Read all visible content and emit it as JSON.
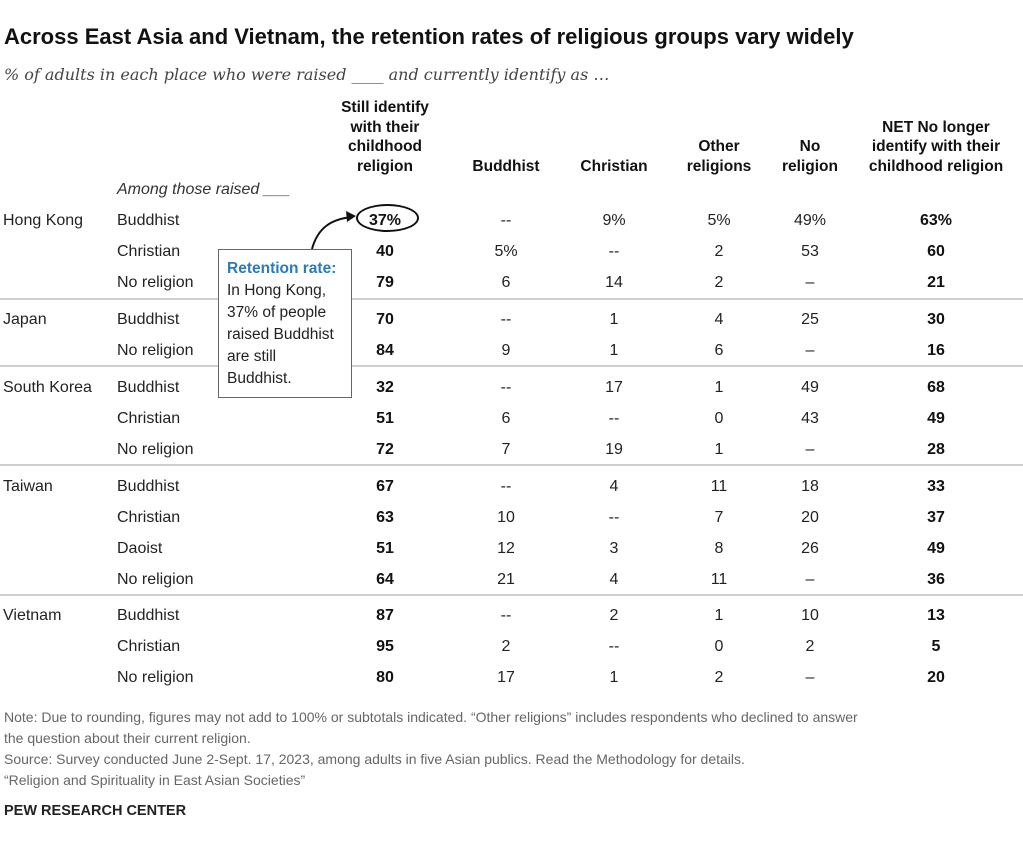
{
  "title": "Across East Asia and Vietnam, the retention rates of religious groups vary widely",
  "subtitle": "% of adults in each place who were raised ____ and currently identify as …",
  "among_label": "Among those raised ___",
  "columns": [
    {
      "key": "still",
      "lines": [
        "Still identify",
        "with their",
        "childhood",
        "religion"
      ]
    },
    {
      "key": "buddhist",
      "lines": [
        "Buddhist"
      ]
    },
    {
      "key": "christian",
      "lines": [
        "Christian"
      ]
    },
    {
      "key": "other",
      "lines": [
        "Other",
        "religions"
      ]
    },
    {
      "key": "none",
      "lines": [
        "No",
        "religion"
      ]
    },
    {
      "key": "net",
      "lines": [
        "NET No longer",
        "identify with their",
        "childhood religion"
      ]
    }
  ],
  "callout": {
    "highlight": "Retention rate:",
    "text": " In Hong Kong, 37% of people raised Buddhist are still Buddhist."
  },
  "chart_data": {
    "type": "table",
    "columns": [
      "Still identify with their childhood religion",
      "Buddhist",
      "Christian",
      "Other religions",
      "No religion",
      "NET No longer identify with their childhood religion"
    ],
    "groups": [
      {
        "place": "Hong Kong",
        "rows": [
          {
            "raised": "Buddhist",
            "values": [
              "37%",
              "--",
              "9%",
              "5%",
              "49%",
              "63%"
            ]
          },
          {
            "raised": "Christian",
            "values": [
              "40",
              "5%",
              "--",
              "2",
              "53",
              "60"
            ]
          },
          {
            "raised": "No religion",
            "values": [
              "79",
              "6",
              "14",
              "2",
              "–",
              "21"
            ]
          }
        ]
      },
      {
        "place": "Japan",
        "rows": [
          {
            "raised": "Buddhist",
            "values": [
              "70",
              "--",
              "1",
              "4",
              "25",
              "30"
            ]
          },
          {
            "raised": "No religion",
            "values": [
              "84",
              "9",
              "1",
              "6",
              "–",
              "16"
            ]
          }
        ]
      },
      {
        "place": "South Korea",
        "rows": [
          {
            "raised": "Buddhist",
            "values": [
              "32",
              "--",
              "17",
              "1",
              "49",
              "68"
            ]
          },
          {
            "raised": "Christian",
            "values": [
              "51",
              "6",
              "--",
              "0",
              "43",
              "49"
            ]
          },
          {
            "raised": "No religion",
            "values": [
              "72",
              "7",
              "19",
              "1",
              "–",
              "28"
            ]
          }
        ]
      },
      {
        "place": "Taiwan",
        "rows": [
          {
            "raised": "Buddhist",
            "values": [
              "67",
              "--",
              "4",
              "11",
              "18",
              "33"
            ]
          },
          {
            "raised": "Christian",
            "values": [
              "63",
              "10",
              "--",
              "7",
              "20",
              "37"
            ]
          },
          {
            "raised": "Daoist",
            "values": [
              "51",
              "12",
              "3",
              "8",
              "26",
              "49"
            ]
          },
          {
            "raised": "No religion",
            "values": [
              "64",
              "21",
              "4",
              "11",
              "–",
              "36"
            ]
          }
        ]
      },
      {
        "place": "Vietnam",
        "rows": [
          {
            "raised": "Buddhist",
            "values": [
              "87",
              "--",
              "2",
              "1",
              "10",
              "13"
            ]
          },
          {
            "raised": "Christian",
            "values": [
              "95",
              "2",
              "--",
              "0",
              "2",
              "5"
            ]
          },
          {
            "raised": "No religion",
            "values": [
              "80",
              "17",
              "1",
              "2",
              "–",
              "20"
            ]
          }
        ]
      }
    ]
  },
  "notes": [
    "Note: Due to rounding, figures may not add to 100% or subtotals indicated. “Other religions” includes respondents who declined to answer",
    "the question about their current religion.",
    "Source: Survey conducted June 2-Sept. 17, 2023, among adults in five Asian publics. Read the Methodology for details.",
    "“Religion and Spirituality in East Asian Societies”"
  ],
  "brand": "PEW RESEARCH CENTER"
}
